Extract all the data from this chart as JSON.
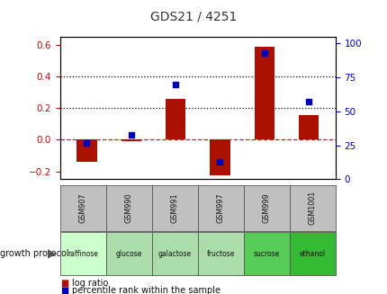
{
  "title": "GDS21 / 4251",
  "categories": [
    "GSM907",
    "GSM990",
    "GSM991",
    "GSM997",
    "GSM999",
    "GSM1001"
  ],
  "growth_protocol": [
    "raffinose",
    "glucose",
    "galactose",
    "fructose",
    "sucrose",
    "ethanol"
  ],
  "protocol_colors": [
    "#ccffcc",
    "#aaddaa",
    "#aaddaa",
    "#aaddaa",
    "#55cc55",
    "#33bb33"
  ],
  "log_ratio": [
    -0.14,
    -0.01,
    0.255,
    -0.225,
    0.585,
    0.155
  ],
  "percentile_rank": [
    27,
    33,
    70,
    13,
    93,
    57
  ],
  "left_ylim": [
    -0.25,
    0.65
  ],
  "right_ylim": [
    0,
    105
  ],
  "left_yticks": [
    -0.2,
    0.0,
    0.2,
    0.4,
    0.6
  ],
  "right_yticks": [
    0,
    25,
    50,
    75,
    100
  ],
  "hline_y": [
    0.2,
    0.4
  ],
  "hline_color": "#000000",
  "bar_color": "#aa1100",
  "scatter_color": "#0000bb",
  "zero_line_color": "#cc2200",
  "bg_color": "#ffffff",
  "plot_bg": "#ffffff",
  "left_tick_color": "#cc0000",
  "right_tick_color": "#0000cc",
  "gsm_bg": "#c0c0c0",
  "legend_items": [
    "log ratio",
    "percentile rank within the sample"
  ],
  "legend_colors": [
    "#aa1100",
    "#0000bb"
  ],
  "growth_label": "growth protocol",
  "bar_width": 0.45
}
